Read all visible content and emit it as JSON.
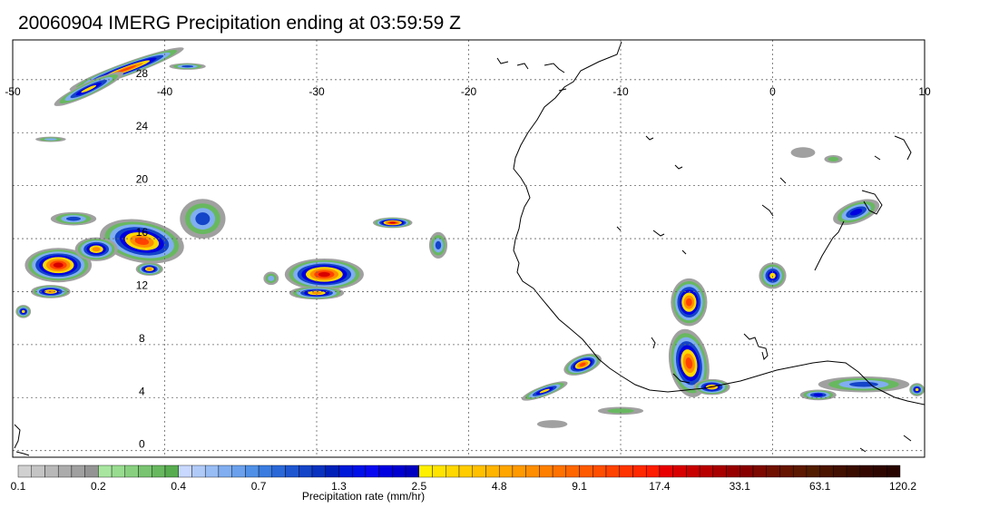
{
  "title": "20060904 IMERG Precipitation ending at 03:59:59 Z",
  "map": {
    "lon_range": [
      -50,
      10
    ],
    "lat_range": [
      -0.5,
      31
    ],
    "lon_ticks": [
      "-50",
      "-40",
      "-30",
      "-20",
      "-10",
      "0",
      "10"
    ],
    "lat_ticks": [
      "0",
      "4",
      "8",
      "12",
      "16",
      "20",
      "24",
      "28"
    ],
    "grid": "dotted",
    "precip_cells": [
      {
        "lon": -42.5,
        "lat": 28.8,
        "rx": 4.0,
        "ry": 0.5,
        "rot": -20,
        "peak": 17.4
      },
      {
        "lon": -45.0,
        "lat": 27.3,
        "rx": 2.5,
        "ry": 0.5,
        "rot": -25,
        "peak": 4.8
      },
      {
        "lon": -38.5,
        "lat": 29.0,
        "rx": 1.2,
        "ry": 0.25,
        "rot": 0,
        "peak": 1.3
      },
      {
        "lon": -47.0,
        "lat": 14.0,
        "rx": 2.2,
        "ry": 1.3,
        "rot": 0,
        "peak": 33.1
      },
      {
        "lon": -41.5,
        "lat": 15.8,
        "rx": 2.8,
        "ry": 1.6,
        "rot": 10,
        "peak": 17.4
      },
      {
        "lon": -44.5,
        "lat": 15.2,
        "rx": 1.4,
        "ry": 0.9,
        "rot": 0,
        "peak": 9.1
      },
      {
        "lon": -47.5,
        "lat": 12.0,
        "rx": 1.3,
        "ry": 0.5,
        "rot": 0,
        "peak": 9.1
      },
      {
        "lon": -49.3,
        "lat": 10.5,
        "rx": 0.5,
        "ry": 0.5,
        "rot": 0,
        "peak": 4.8
      },
      {
        "lon": -41.0,
        "lat": 13.7,
        "rx": 0.9,
        "ry": 0.5,
        "rot": 0,
        "peak": 9.1
      },
      {
        "lon": -29.5,
        "lat": 13.3,
        "rx": 2.6,
        "ry": 1.2,
        "rot": 0,
        "peak": 33.1
      },
      {
        "lon": -30.0,
        "lat": 11.9,
        "rx": 1.8,
        "ry": 0.5,
        "rot": 0,
        "peak": 9.1
      },
      {
        "lon": -25.0,
        "lat": 17.2,
        "rx": 1.3,
        "ry": 0.4,
        "rot": 0,
        "peak": 33.1
      },
      {
        "lon": -22.0,
        "lat": 15.5,
        "rx": 0.6,
        "ry": 1.0,
        "rot": 0,
        "peak": 1.3
      },
      {
        "lon": -12.5,
        "lat": 6.5,
        "rx": 1.3,
        "ry": 0.7,
        "rot": -20,
        "peak": 17.4
      },
      {
        "lon": -15.0,
        "lat": 4.5,
        "rx": 1.6,
        "ry": 0.4,
        "rot": -20,
        "peak": 4.8
      },
      {
        "lon": -5.5,
        "lat": 11.2,
        "rx": 1.2,
        "ry": 1.8,
        "rot": 0,
        "peak": 17.4
      },
      {
        "lon": -5.5,
        "lat": 6.6,
        "rx": 1.3,
        "ry": 2.6,
        "rot": -10,
        "peak": 17.4
      },
      {
        "lon": -4.0,
        "lat": 4.8,
        "rx": 1.2,
        "ry": 0.6,
        "rot": 0,
        "peak": 9.1
      },
      {
        "lon": 0.0,
        "lat": 13.2,
        "rx": 0.9,
        "ry": 1.0,
        "rot": 0,
        "peak": 4.8
      },
      {
        "lon": 5.5,
        "lat": 18.0,
        "rx": 1.6,
        "ry": 0.8,
        "rot": -20,
        "peak": 2.5
      },
      {
        "lon": 6.0,
        "lat": 5.0,
        "rx": 3.0,
        "ry": 0.6,
        "rot": 0,
        "peak": 1.3
      },
      {
        "lon": 9.5,
        "lat": 4.6,
        "rx": 0.5,
        "ry": 0.5,
        "rot": 0,
        "peak": 4.8
      },
      {
        "lon": 3.0,
        "lat": 4.2,
        "rx": 1.2,
        "ry": 0.4,
        "rot": 0,
        "peak": 2.5
      },
      {
        "lon": -37.5,
        "lat": 17.5,
        "rx": 1.5,
        "ry": 1.5,
        "rot": 0,
        "peak": 1.3
      },
      {
        "lon": -46.0,
        "lat": 17.5,
        "rx": 1.5,
        "ry": 0.5,
        "rot": 0,
        "peak": 1.3
      },
      {
        "lon": -33.0,
        "lat": 13.0,
        "rx": 0.5,
        "ry": 0.5,
        "rot": 0,
        "peak": 0.7
      },
      {
        "lon": -10.0,
        "lat": 3.0,
        "rx": 1.5,
        "ry": 0.3,
        "rot": 0,
        "peak": 0.4
      },
      {
        "lon": -14.5,
        "lat": 2.0,
        "rx": 1.0,
        "ry": 0.3,
        "rot": 0,
        "peak": 0.2
      },
      {
        "lon": 4.0,
        "lat": 22.0,
        "rx": 0.6,
        "ry": 0.3,
        "rot": 0,
        "peak": 0.4
      },
      {
        "lon": 2.0,
        "lat": 22.5,
        "rx": 0.8,
        "ry": 0.4,
        "rot": 0,
        "peak": 0.2
      },
      {
        "lon": -47.5,
        "lat": 23.5,
        "rx": 1.0,
        "ry": 0.2,
        "rot": 0,
        "peak": 0.7
      }
    ]
  },
  "colorbar": {
    "label": "Precipitation rate (mm/hr)",
    "tick_labels": [
      "0.1",
      "0.2",
      "0.4",
      "0.7",
      "1.3",
      "2.5",
      "4.8",
      "9.1",
      "17.4",
      "33.1",
      "63.1",
      "120.2"
    ],
    "colors": [
      "#d0d0d0",
      "#c4c4c4",
      "#b8b8b8",
      "#acacac",
      "#a0a0a0",
      "#949494",
      "#a8e6a0",
      "#98dc90",
      "#88d080",
      "#78c470",
      "#68b860",
      "#58ac50",
      "#c8d8ff",
      "#b0caf8",
      "#98bcf4",
      "#80aef0",
      "#6aa0ec",
      "#5090e6",
      "#3a7ce0",
      "#2a68d8",
      "#1e56d0",
      "#1444c8",
      "#0a32c0",
      "#0020b8",
      "#0018d8",
      "#0010e8",
      "#0808f0",
      "#0000e0",
      "#0000d0",
      "#0000c0",
      "#fff000",
      "#ffe400",
      "#ffd800",
      "#ffcc00",
      "#ffc000",
      "#ffb400",
      "#ffa600",
      "#ff9a00",
      "#ff8e00",
      "#ff8000",
      "#ff7200",
      "#ff6600",
      "#ff5a00",
      "#ff4e00",
      "#ff4200",
      "#ff3400",
      "#ff2800",
      "#ff1c00",
      "#e80000",
      "#d80000",
      "#c80000",
      "#b80000",
      "#a80000",
      "#980000",
      "#880000",
      "#7c0800",
      "#701000",
      "#661400",
      "#5c1800",
      "#521c00",
      "#4a1400",
      "#421000",
      "#3a0c00",
      "#340800",
      "#2e0600",
      "#280400"
    ]
  }
}
